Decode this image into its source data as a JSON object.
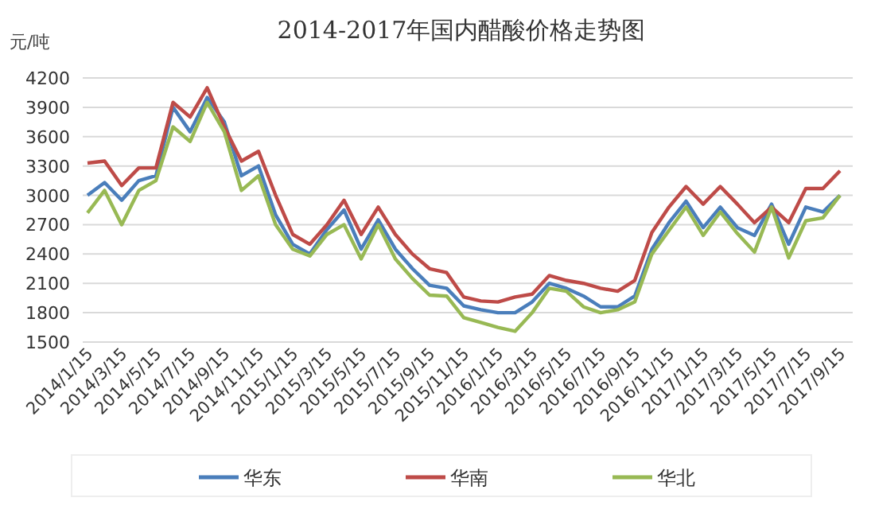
{
  "chart_data": {
    "type": "line",
    "title": "2014-2017年国内醋酸价格走势图",
    "ylabel": "元/吨",
    "categories": [
      "2014/1/15",
      null,
      "2014/3/15",
      null,
      "2014/5/15",
      null,
      "2014/7/15",
      null,
      "2014/9/15",
      null,
      "2014/11/15",
      null,
      "2015/1/15",
      null,
      "2015/3/15",
      null,
      "2015/5/15",
      null,
      "2015/7/15",
      null,
      "2015/9/15",
      null,
      "2015/11/15",
      null,
      "2016/1/15",
      null,
      "2016/3/15",
      null,
      "2016/5/15",
      null,
      "2016/7/15",
      null,
      "2016/9/15",
      null,
      "2016/11/15",
      null,
      "2017/1/15",
      null,
      "2017/3/15",
      null,
      "2017/5/15",
      null,
      "2017/7/15",
      null,
      "2017/9/15"
    ],
    "series": [
      {
        "name": "华东",
        "color": "#4a7ebb",
        "values": [
          3000,
          3130,
          2950,
          3150,
          3200,
          3900,
          3650,
          4000,
          3750,
          3200,
          3300,
          2800,
          2500,
          2400,
          2650,
          2850,
          2450,
          2750,
          2450,
          2250,
          2080,
          2050,
          1870,
          1830,
          1800,
          1800,
          1910,
          2100,
          2050,
          1970,
          1860,
          1860,
          1970,
          2450,
          2720,
          2940,
          2670,
          2880,
          2670,
          2590,
          2910,
          2500,
          2880,
          2830,
          3000
        ]
      },
      {
        "name": "华南",
        "color": "#be4b48",
        "values": [
          3330,
          3350,
          3100,
          3280,
          3280,
          3950,
          3800,
          4100,
          3700,
          3350,
          3450,
          3000,
          2600,
          2500,
          2700,
          2950,
          2600,
          2880,
          2600,
          2400,
          2250,
          2210,
          1960,
          1920,
          1910,
          1960,
          1990,
          2180,
          2130,
          2100,
          2050,
          2020,
          2130,
          2620,
          2880,
          3090,
          2910,
          3090,
          2910,
          2720,
          2880,
          2720,
          3070,
          3070,
          3250
        ]
      },
      {
        "name": "华北",
        "color": "#98b954",
        "values": [
          2820,
          3050,
          2700,
          3050,
          3150,
          3700,
          3550,
          3950,
          3650,
          3050,
          3200,
          2700,
          2450,
          2380,
          2600,
          2700,
          2350,
          2700,
          2350,
          2150,
          1980,
          1970,
          1750,
          1700,
          1650,
          1610,
          1800,
          2050,
          2020,
          1860,
          1800,
          1830,
          1910,
          2400,
          2640,
          2880,
          2590,
          2830,
          2610,
          2420,
          2880,
          2360,
          2740,
          2770,
          3000
        ]
      }
    ],
    "ylim": [
      1500,
      4200
    ],
    "yticks": [
      1500,
      1800,
      2100,
      2400,
      2700,
      3000,
      3300,
      3600,
      3900,
      4200
    ],
    "grid": "y",
    "legend": "bottom",
    "marker": "none",
    "line_style": "solid"
  }
}
